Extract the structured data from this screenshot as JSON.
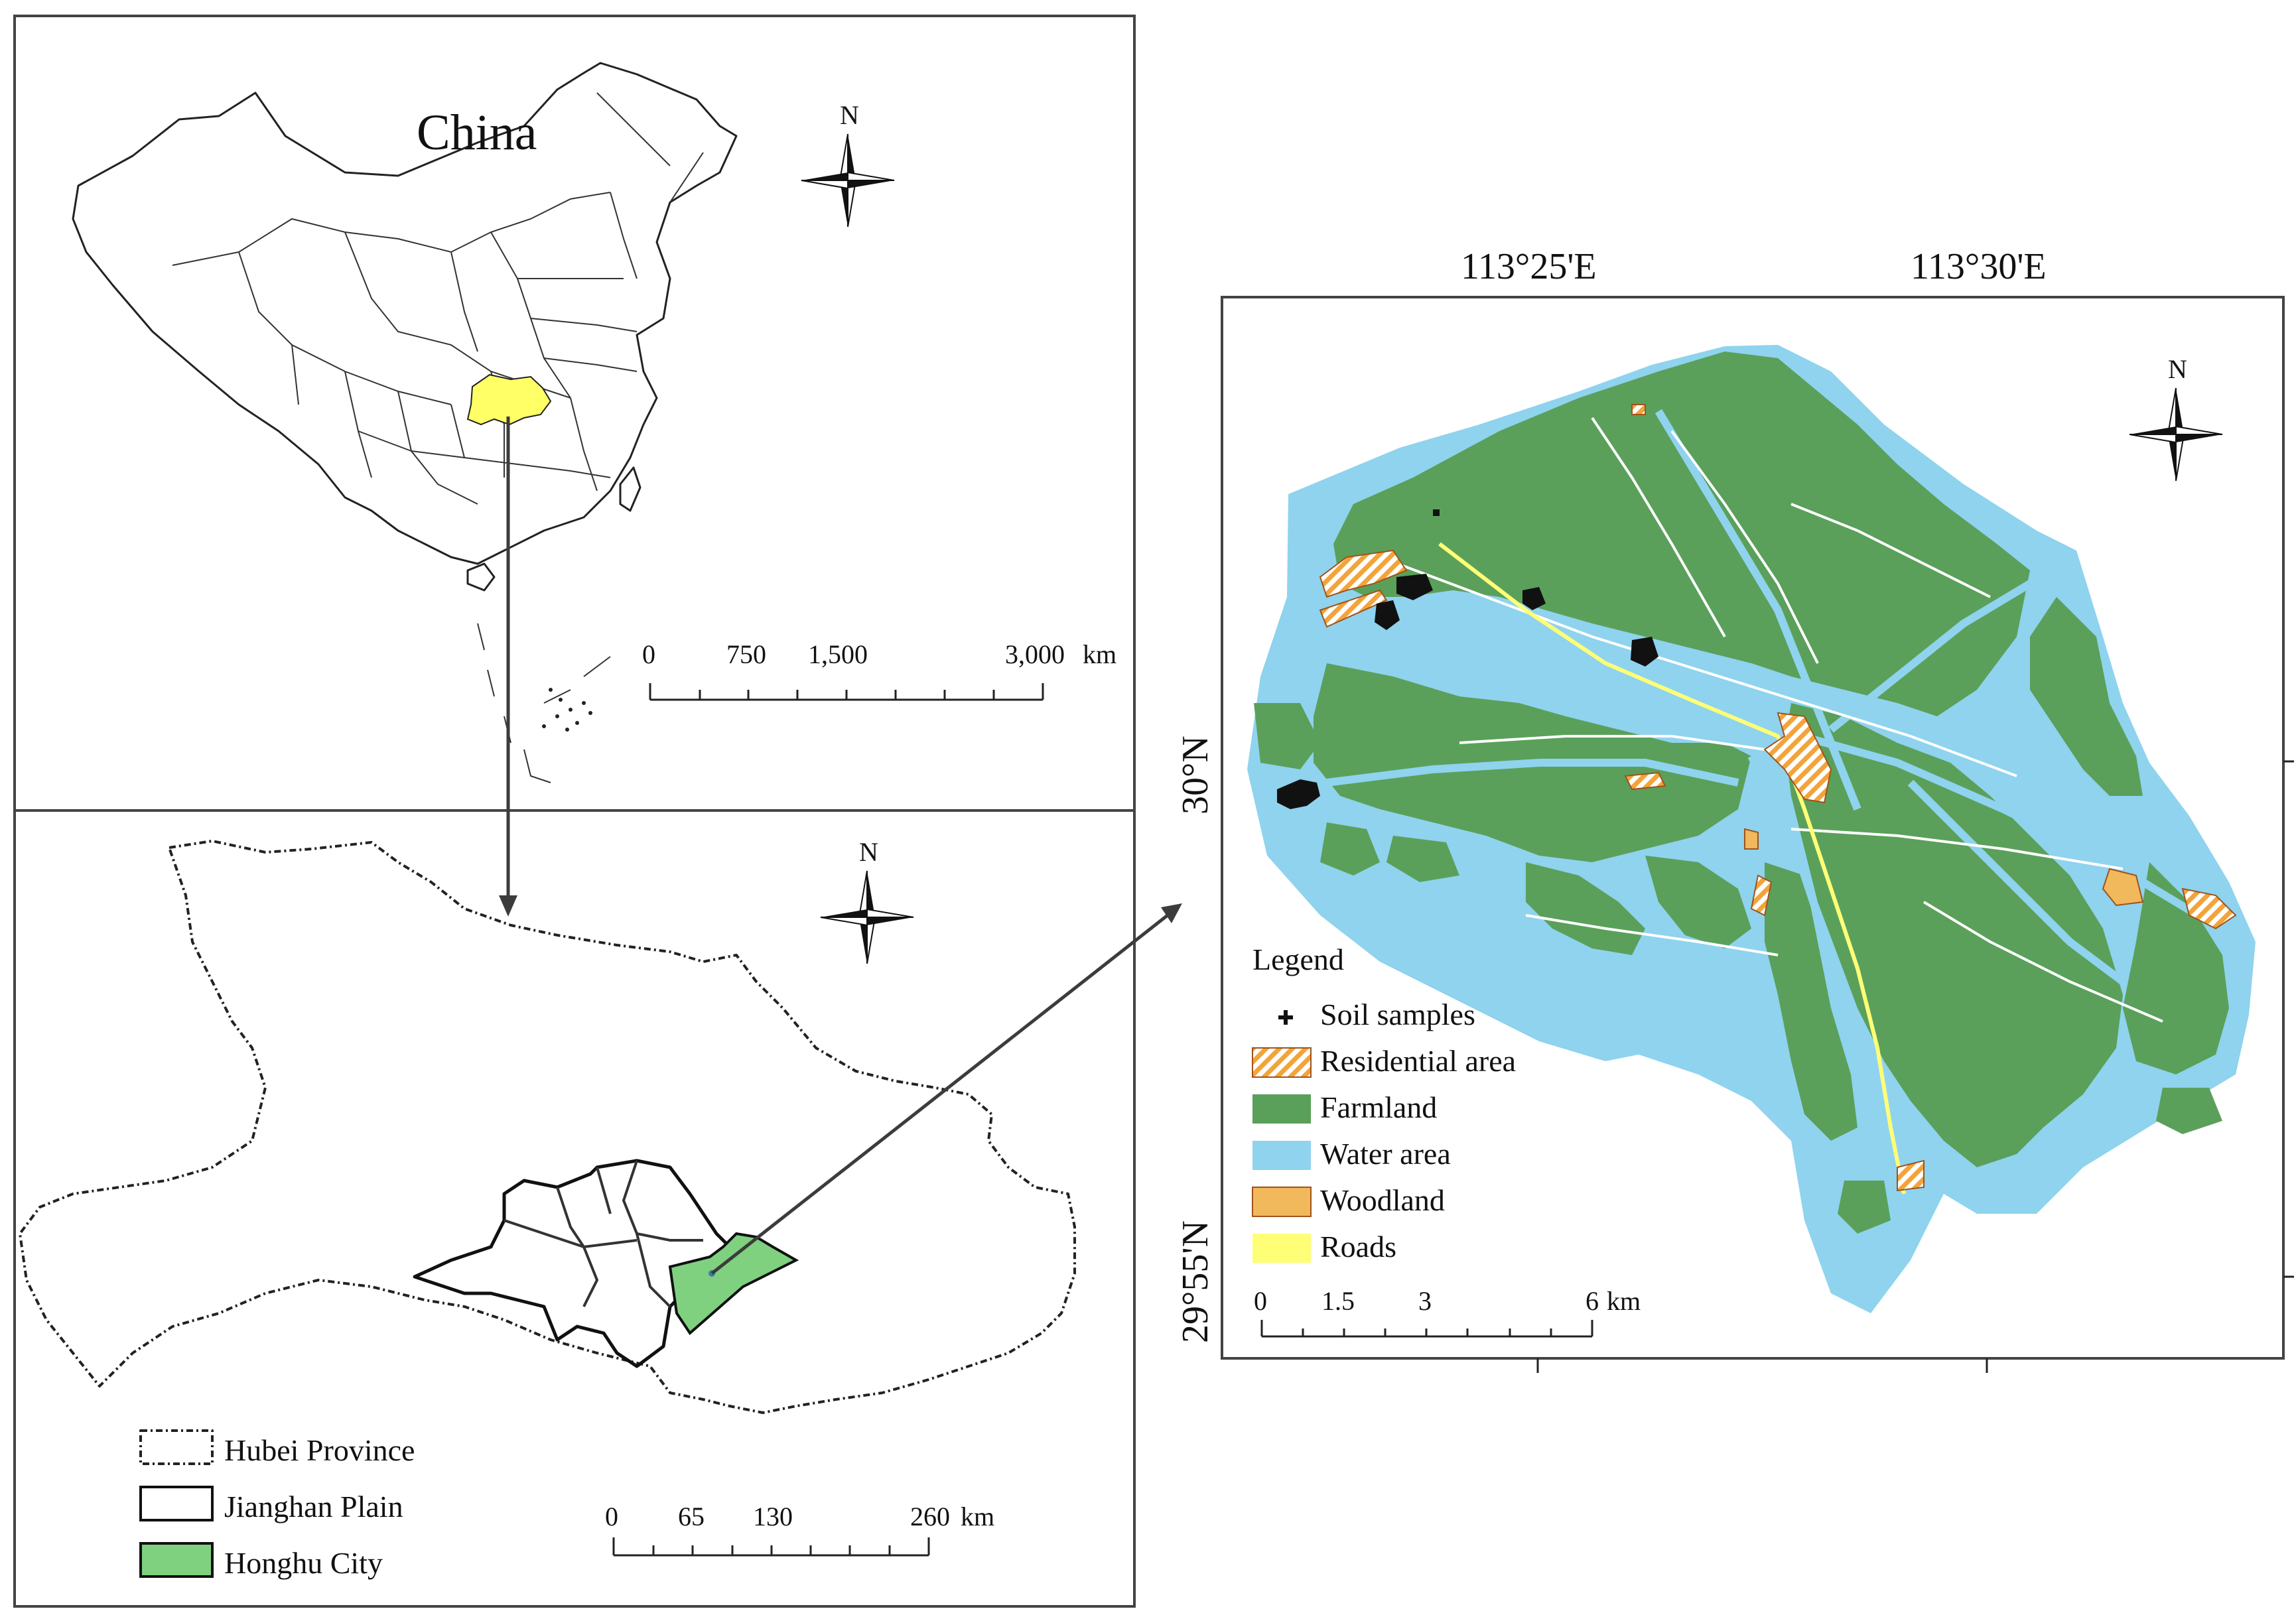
{
  "panel_china": {
    "title": "China",
    "scale": {
      "ticks": [
        "0",
        "750",
        "1,500",
        "3,000"
      ],
      "unit": "km"
    },
    "north_label": "N",
    "colors": {
      "highlight": "#ffff66",
      "outline": "#222222"
    }
  },
  "panel_hubei": {
    "legend": [
      {
        "label": "Hubei Province",
        "style": "dashed-outline"
      },
      {
        "label": "Jianghan Plain",
        "style": "solid-outline"
      },
      {
        "label": "Honghu City",
        "style": "green-fill",
        "color": "#7fd17f"
      }
    ],
    "scale": {
      "ticks": [
        "0",
        "65",
        "130",
        "260"
      ],
      "unit": "km"
    },
    "north_label": "N"
  },
  "panel_honghu": {
    "coords": {
      "top": [
        "113°25'E",
        "113°30'E"
      ],
      "left": [
        "30°N",
        "29°55'N"
      ]
    },
    "north_label": "N",
    "legend_title": "Legend",
    "legend": [
      {
        "label": "Soil samples",
        "icon": "cross-icon",
        "color": "#111111"
      },
      {
        "label": "Residential area",
        "icon": "hatch-swatch",
        "color": "#f2a43a"
      },
      {
        "label": "Farmland",
        "icon": "swatch",
        "color": "#5aa05a"
      },
      {
        "label": "Water area",
        "icon": "swatch",
        "color": "#8fd3ee"
      },
      {
        "label": "Woodland",
        "icon": "swatch",
        "color": "#f2b85c"
      },
      {
        "label": "Roads",
        "icon": "swatch",
        "color": "#ffff77"
      }
    ],
    "scale": {
      "ticks": [
        "0",
        "1.5",
        "3",
        "6"
      ],
      "unit": "km"
    }
  }
}
